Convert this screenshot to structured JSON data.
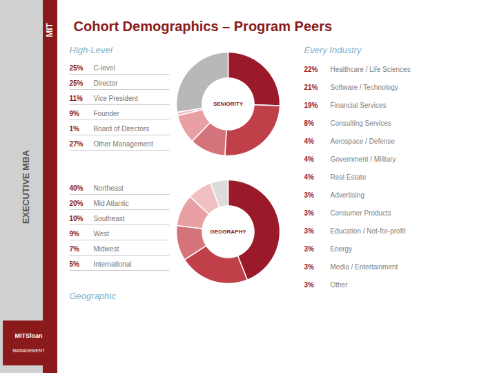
{
  "title": "Cohort Demographics – Program Peers",
  "annotations": [
    "EXECUTIVE MBA",
    "MIT",
    "MITSloan",
    "MANAGEMENT"
  ],
  "chart_data": [
    {
      "type": "pie",
      "title": "SENIORITY",
      "annotations": [
        "High-Level"
      ],
      "categories": [
        "C-level",
        "Director",
        "Vice President",
        "Founder",
        "Board of Directors",
        "Other Management"
      ],
      "values": [
        25,
        25,
        11,
        9,
        1,
        27
      ],
      "value_labels": [
        "25%",
        "25%",
        "11%",
        "9%",
        "1%",
        "27%"
      ],
      "data_labels": true,
      "colors": [
        "#9b1a2a",
        "#c0404a",
        "#d4737a",
        "#e8a0a5",
        "#f0c0c3",
        "#b8b8b8"
      ]
    },
    {
      "type": "pie",
      "title": "GEOGRAPHY",
      "annotations": [
        "Geographic"
      ],
      "categories": [
        "Northeast",
        "Mid Atlantic",
        "Southeast",
        "West",
        "Midwest",
        "International"
      ],
      "values": [
        40,
        20,
        10,
        9,
        7,
        5
      ],
      "value_labels": [
        "40%",
        "20%",
        "10%",
        "9%",
        "7%",
        "5%"
      ],
      "data_labels": true,
      "colors": [
        "#9b1a2a",
        "#c0404a",
        "#d4737a",
        "#e8a0a5",
        "#f0c0c3",
        "#dcdcdc"
      ]
    },
    {
      "type": "list",
      "title": "Every Industry",
      "categories": [
        "Healthcare / Life Sciences",
        "Software / Technology",
        "Financial Services",
        "Consulting Services",
        "Aerospace / Defense",
        "Government / Military",
        "Real Estate",
        "Advertising",
        "Consumer Products",
        "Education / Not-for-profit",
        "Energy",
        "Media / Entertainment",
        "Other"
      ],
      "values": [
        22,
        21,
        19,
        8,
        4,
        4,
        4,
        3,
        3,
        3,
        3,
        3,
        3
      ],
      "value_labels": [
        "22%",
        "21%",
        "19%",
        "8%",
        "4%",
        "4%",
        "4%",
        "3%",
        "3%",
        "3%",
        "3%",
        "3%",
        "3%"
      ],
      "data_labels": true
    }
  ]
}
